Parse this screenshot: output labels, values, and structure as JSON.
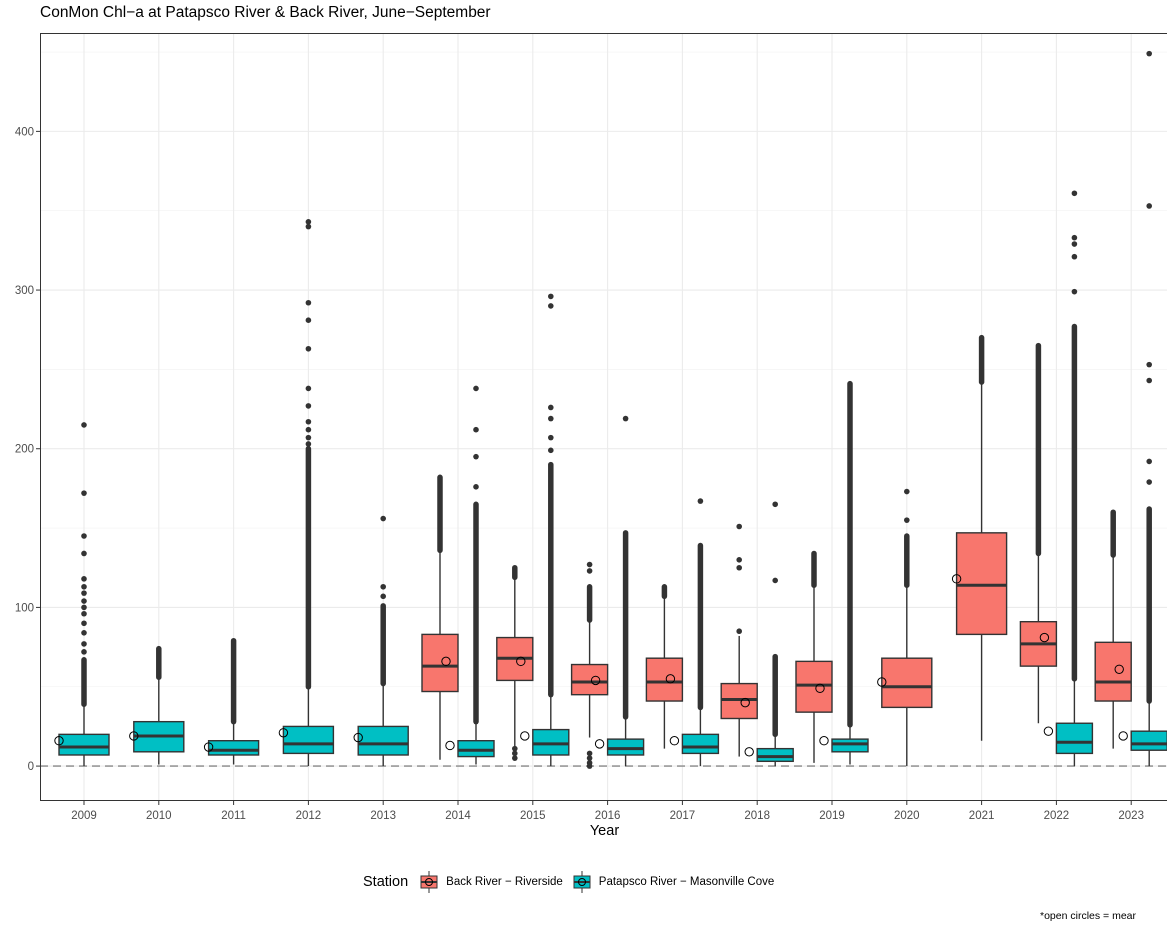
{
  "title": "ConMon Chl−a at Patapsco River & Back River, June−September",
  "note": "*open circles = mear",
  "legend": {
    "title": "Station",
    "items": [
      {
        "label": "Back River − Riverside",
        "color": "#f8766d"
      },
      {
        "label": "Patapsco River − Masonville Cove",
        "color": "#00bfc4"
      }
    ]
  },
  "chart_data": {
    "type": "boxplot",
    "xlabel": "Year",
    "ylabel": "",
    "ylim": [
      -22,
      462
    ],
    "yticks": [
      0,
      100,
      200,
      300,
      400
    ],
    "hline": 0,
    "grid": true,
    "legend_position": "bottom",
    "categories": [
      "2009",
      "2010",
      "2011",
      "2012",
      "2013",
      "2014",
      "2015",
      "2016",
      "2017",
      "2018",
      "2019",
      "2020",
      "2021",
      "2022",
      "2023"
    ],
    "series": [
      {
        "name": "Back River − Riverside",
        "color": "#f8766d",
        "boxes": [
          {
            "x": "2014",
            "min": 4,
            "q1": 47,
            "median": 63,
            "q3": 83,
            "max": 135,
            "mean": 66,
            "outlier_band": [
              136,
              182
            ],
            "outliers": []
          },
          {
            "x": "2015",
            "min": 6,
            "q1": 54,
            "median": 68,
            "q3": 81,
            "max": 118,
            "mean": 66,
            "outlier_band": [
              119,
              125
            ],
            "outliers": [
              5,
              8,
              11
            ]
          },
          {
            "x": "2016",
            "min": 18,
            "q1": 45,
            "median": 53,
            "q3": 64,
            "max": 91,
            "mean": 54,
            "outlier_band": [
              92,
              113
            ],
            "outliers": [
              0,
              2,
              5,
              8,
              123,
              127
            ]
          },
          {
            "x": "2017",
            "min": 11,
            "q1": 41,
            "median": 53,
            "q3": 68,
            "max": 106,
            "mean": 55,
            "outlier_band": [
              107,
              113
            ],
            "outliers": []
          },
          {
            "x": "2018",
            "min": 6,
            "q1": 30,
            "median": 42,
            "q3": 52,
            "max": 82,
            "mean": 40,
            "outlier_band": [],
            "outliers": [
              85,
              125,
              130,
              151
            ]
          },
          {
            "x": "2019",
            "min": 2,
            "q1": 34,
            "median": 51,
            "q3": 66,
            "max": 113,
            "mean": 49,
            "outlier_band": [
              114,
              134
            ],
            "outliers": []
          },
          {
            "x": "2020",
            "min": 0,
            "q1": 37,
            "median": 50,
            "q3": 68,
            "max": 113,
            "mean": 53,
            "outlier_band": [
              114,
              145
            ],
            "outliers": [
              155,
              173
            ]
          },
          {
            "x": "2021",
            "min": 16,
            "q1": 83,
            "median": 114,
            "q3": 147,
            "max": 241,
            "mean": 118,
            "outlier_band": [
              242,
              270
            ],
            "outliers": []
          },
          {
            "x": "2022",
            "min": 27,
            "q1": 63,
            "median": 77,
            "q3": 91,
            "max": 133,
            "mean": 81,
            "outlier_band": [
              134,
              265
            ],
            "outliers": []
          },
          {
            "x": "2023",
            "min": 11,
            "q1": 41,
            "median": 53,
            "q3": 78,
            "max": 132,
            "mean": 61,
            "outlier_band": [
              133,
              160
            ],
            "outliers": []
          }
        ]
      },
      {
        "name": "Patapsco River − Masonville Cove",
        "color": "#00bfc4",
        "boxes": [
          {
            "x": "2009",
            "min": 0,
            "q1": 7,
            "median": 12,
            "q3": 20,
            "max": 38,
            "mean": 16,
            "outlier_band": [
              39,
              67
            ],
            "outliers": [
              72,
              77,
              84,
              90,
              96,
              100,
              104,
              109,
              113,
              118,
              134,
              145,
              172,
              215
            ]
          },
          {
            "x": "2010",
            "min": 1,
            "q1": 9,
            "median": 19,
            "q3": 28,
            "max": 55,
            "mean": 19,
            "outlier_band": [
              56,
              74
            ],
            "outliers": []
          },
          {
            "x": "2011",
            "min": 1,
            "q1": 7,
            "median": 10,
            "q3": 16,
            "max": 27,
            "mean": 12,
            "outlier_band": [
              28,
              79
            ],
            "outliers": []
          },
          {
            "x": "2012",
            "min": 0,
            "q1": 8,
            "median": 14,
            "q3": 25,
            "max": 49,
            "mean": 21,
            "outlier_band": [
              50,
              200
            ],
            "outliers": [
              203,
              207,
              212,
              217,
              227,
              238,
              263,
              281,
              292,
              340,
              343
            ]
          },
          {
            "x": "2013",
            "min": 0,
            "q1": 7,
            "median": 14,
            "q3": 25,
            "max": 51,
            "mean": 18,
            "outlier_band": [
              52,
              101
            ],
            "outliers": [
              107,
              113,
              156
            ]
          },
          {
            "x": "2014",
            "min": 1,
            "q1": 6,
            "median": 10,
            "q3": 16,
            "max": 27,
            "mean": 13,
            "outlier_band": [
              28,
              165
            ],
            "outliers": [
              176,
              195,
              212,
              238
            ]
          },
          {
            "x": "2015",
            "min": 0,
            "q1": 7,
            "median": 14,
            "q3": 23,
            "max": 44,
            "mean": 19,
            "outlier_band": [
              45,
              190
            ],
            "outliers": [
              199,
              207,
              219,
              226,
              290,
              296
            ]
          },
          {
            "x": "2016",
            "min": 0,
            "q1": 7,
            "median": 11,
            "q3": 17,
            "max": 30,
            "mean": 14,
            "outlier_band": [
              31,
              147
            ],
            "outliers": [
              219
            ]
          },
          {
            "x": "2017",
            "min": 0,
            "q1": 8,
            "median": 12,
            "q3": 20,
            "max": 36,
            "mean": 16,
            "outlier_band": [
              37,
              139
            ],
            "outliers": [
              167
            ]
          },
          {
            "x": "2018",
            "min": 0,
            "q1": 3,
            "median": 6,
            "q3": 11,
            "max": 19,
            "mean": 9,
            "outlier_band": [
              20,
              69
            ],
            "outliers": [
              117,
              165
            ]
          },
          {
            "x": "2019",
            "min": 1,
            "q1": 9,
            "median": 14,
            "q3": 17,
            "max": 25,
            "mean": 16,
            "outlier_band": [
              26,
              241
            ],
            "outliers": []
          },
          {
            "x": "2022",
            "min": 0,
            "q1": 8,
            "median": 15,
            "q3": 27,
            "max": 54,
            "mean": 22,
            "outlier_band": [
              55,
              277
            ],
            "outliers": [
              299,
              321,
              329,
              333,
              361
            ]
          },
          {
            "x": "2023",
            "min": 0,
            "q1": 10,
            "median": 14,
            "q3": 22,
            "max": 40,
            "mean": 19,
            "outlier_band": [
              41,
              162
            ],
            "outliers": [
              179,
              192,
              243,
              253,
              353,
              449
            ]
          }
        ]
      }
    ]
  }
}
